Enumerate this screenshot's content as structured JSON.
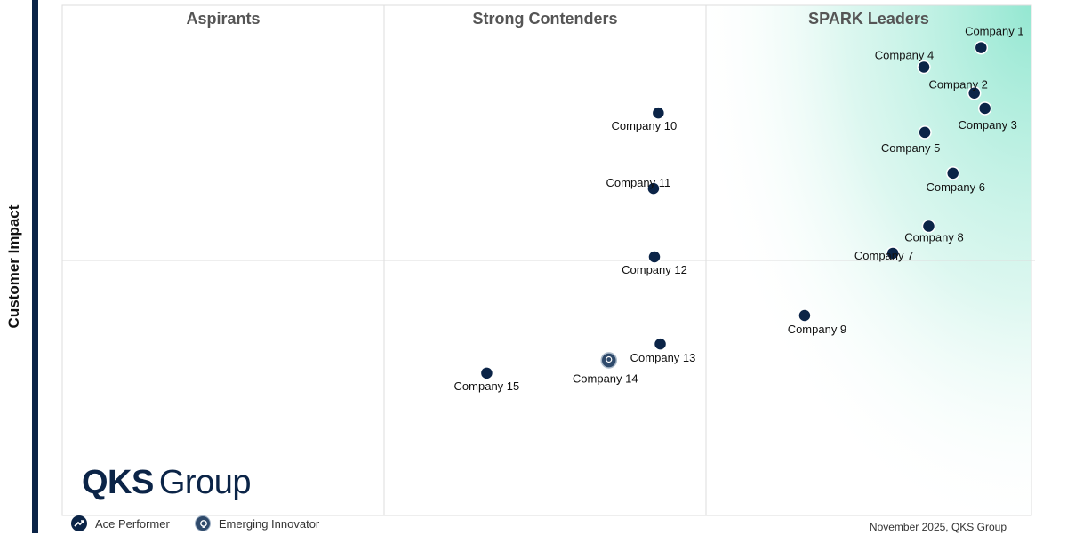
{
  "chart_data": {
    "type": "scatter",
    "title": "",
    "xlabel": "",
    "ylabel": "Customer Impact",
    "quadrants": [
      "Aspirants",
      "Strong Contenders",
      "SPARK Leaders"
    ],
    "points": [
      {
        "label": "Company 1",
        "x": 9.48,
        "y": 9.17,
        "marker": "ace-performer"
      },
      {
        "label": "Company 2",
        "x": 9.41,
        "y": 8.28,
        "marker": "ace-performer"
      },
      {
        "label": "Company 3",
        "x": 9.52,
        "y": 7.98,
        "marker": "ace-performer"
      },
      {
        "label": "Company 4",
        "x": 8.89,
        "y": 8.79,
        "marker": "ace-performer"
      },
      {
        "label": "Company 5",
        "x": 8.9,
        "y": 7.51,
        "marker": "ace-performer"
      },
      {
        "label": "Company 6",
        "x": 9.19,
        "y": 6.71,
        "marker": "ace-performer"
      },
      {
        "label": "Company 7",
        "x": 8.57,
        "y": 5.14,
        "marker": "ace-performer"
      },
      {
        "label": "Company 8",
        "x": 8.94,
        "y": 5.67,
        "marker": "ace-performer"
      },
      {
        "label": "Company 9",
        "x": 7.66,
        "y": 3.92,
        "marker": "ace-performer"
      },
      {
        "label": "Company 10",
        "x": 6.15,
        "y": 7.89,
        "marker": "ace-performer"
      },
      {
        "label": "Company 11",
        "x": 6.1,
        "y": 6.41,
        "marker": "ace-performer"
      },
      {
        "label": "Company 12",
        "x": 6.11,
        "y": 5.07,
        "marker": "ace-performer"
      },
      {
        "label": "Company 13",
        "x": 6.17,
        "y": 3.36,
        "marker": "ace-performer"
      },
      {
        "label": "Company 14",
        "x": 5.64,
        "y": 3.04,
        "marker": "emerging-innovator"
      },
      {
        "label": "Company 15",
        "x": 4.38,
        "y": 2.79,
        "marker": "ace-performer"
      }
    ],
    "xlim": [
      0,
      10
    ],
    "ylim": [
      0,
      10
    ],
    "grid": true,
    "legend": "bottom-left"
  },
  "legend_items": {
    "ace": "Ace Performer",
    "emerging": "Emerging Innovator"
  },
  "logo": {
    "bold": "QKS",
    "light": "Group"
  },
  "footer": {
    "date_source": "November 2025, QKS Group"
  },
  "colors": {
    "marker": "#0b2447",
    "leaders_gradient": "#9fe8d5",
    "grid": "#dddddd",
    "quadrant_title": "#555555",
    "left_bar": "#0b2447"
  },
  "icons": {
    "ace": "trending-up-icon",
    "emerging": "lightbulb-icon"
  }
}
